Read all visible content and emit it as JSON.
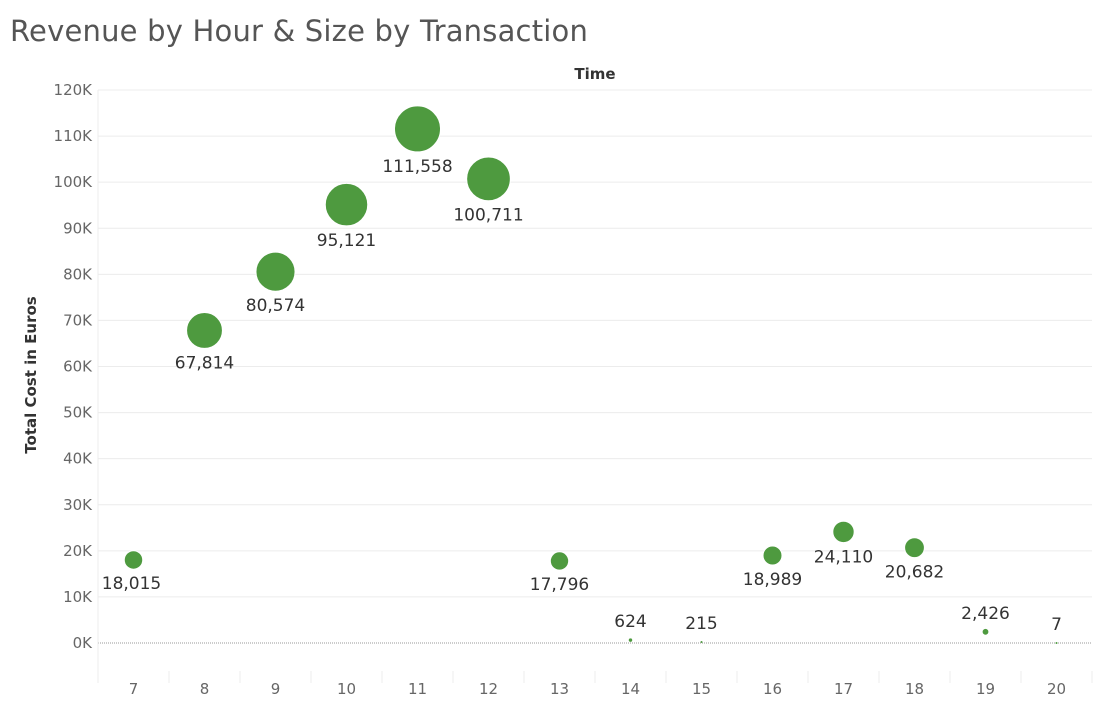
{
  "title": "Revenue by Hour & Size by Transaction",
  "colors": {
    "marker": "#4e9a3f",
    "marker_edge": "#ffffff",
    "grid": "#ececec",
    "zero_line": "#9a9a9a"
  },
  "chart_data": {
    "type": "scatter",
    "title": "Revenue by Hour & Size by Transaction",
    "xlabel": "Time",
    "ylabel": "Total Cost in Euros",
    "x": [
      7,
      8,
      9,
      10,
      11,
      12,
      13,
      14,
      15,
      16,
      17,
      18,
      19,
      20
    ],
    "values": [
      18015,
      67814,
      80574,
      95121,
      111558,
      100711,
      17796,
      624,
      215,
      18989,
      24110,
      20682,
      2426,
      7
    ],
    "labels": [
      "18,015",
      "67,814",
      "80,574",
      "95,121",
      "111,558",
      "100,711",
      "17,796",
      "624",
      "215",
      "18,989",
      "24,110",
      "20,682",
      "2,426",
      "7"
    ],
    "ylim": [
      0,
      120000
    ],
    "yticks": [
      0,
      10000,
      20000,
      30000,
      40000,
      50000,
      60000,
      70000,
      80000,
      90000,
      100000,
      110000,
      120000
    ],
    "ytick_labels": [
      "0K",
      "10K",
      "20K",
      "30K",
      "40K",
      "50K",
      "60K",
      "70K",
      "80K",
      "90K",
      "100K",
      "110K",
      "120K"
    ],
    "xtick_labels": [
      "7",
      "8",
      "9",
      "10",
      "11",
      "12",
      "13",
      "14",
      "15",
      "16",
      "17",
      "18",
      "19",
      "20"
    ],
    "marker_size": "proportional to value",
    "grid": true,
    "legend": "none"
  }
}
